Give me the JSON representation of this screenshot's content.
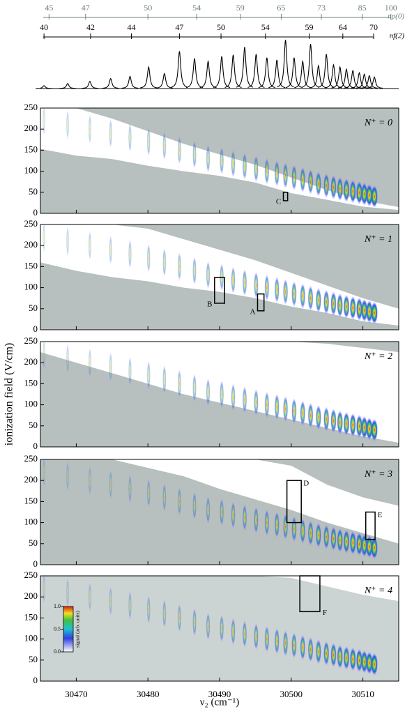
{
  "chart_data": [
    {
      "type": "line",
      "xlim": [
        30465,
        30515
      ],
      "ylim": [
        0,
        70
      ],
      "color": "#000000",
      "x": [
        30465.5,
        30468.8,
        30471.9,
        30474.8,
        30477.5,
        30480.1,
        30482.3,
        30484.4,
        30486.5,
        30488.4,
        30490.3,
        30491.9,
        30493.5,
        30495.1,
        30496.6,
        30498.0,
        30499.2,
        30500.4,
        30501.6,
        30502.7,
        30503.8,
        30504.9,
        30505.9,
        30506.8,
        30507.7,
        30508.6,
        30509.5,
        30510.2,
        30510.9,
        30511.6
      ],
      "values": [
        4,
        7,
        10,
        14,
        17,
        30,
        21,
        52,
        42,
        38,
        45,
        47,
        58,
        48,
        43,
        40,
        68,
        43,
        38,
        62,
        32,
        48,
        33,
        30,
        27,
        25,
        22,
        20,
        18,
        16
      ],
      "scales": [
        {
          "label": "np(0)",
          "color": "#6f8080",
          "ticks": [
            {
              "value": 30466.2,
              "label": "45"
            },
            {
              "value": 30471.3,
              "label": "47"
            },
            {
              "value": 30480.0,
              "label": "50"
            },
            {
              "value": 30486.8,
              "label": "54"
            },
            {
              "value": 30492.9,
              "label": "59"
            },
            {
              "value": 30498.6,
              "label": "65"
            },
            {
              "value": 30504.2,
              "label": "73"
            },
            {
              "value": 30509.9,
              "label": "85"
            },
            {
              "value": 30513.9,
              "label": "100"
            }
          ]
        },
        {
          "label": "nf(2)",
          "color": "#000000",
          "ticks": [
            {
              "value": 30465.5,
              "label": "40"
            },
            {
              "value": 30472.0,
              "label": "42"
            },
            {
              "value": 30477.7,
              "label": "44"
            },
            {
              "value": 30484.4,
              "label": "47"
            },
            {
              "value": 30490.2,
              "label": "50"
            },
            {
              "value": 30496.4,
              "label": "54"
            },
            {
              "value": 30502.5,
              "label": "59"
            },
            {
              "value": 30507.2,
              "label": "64"
            },
            {
              "value": 30511.5,
              "label": "70"
            }
          ]
        }
      ]
    },
    {
      "type": "heatmap",
      "label": "N⁺ = 0",
      "color": "#b7bfbf",
      "xlim": [
        30465,
        30515
      ],
      "ylim": [
        0,
        250
      ],
      "yticks": [
        0,
        50,
        100,
        150,
        200,
        250
      ],
      "boundary_x": [
        30465,
        30470,
        30475,
        30480,
        30485,
        30490,
        30495,
        30500,
        30505,
        30510,
        30515
      ],
      "lower": [
        153,
        137,
        129,
        113,
        100,
        89,
        73,
        48,
        32,
        16,
        8
      ],
      "upper": [
        250,
        250,
        225,
        195,
        165,
        140,
        115,
        85,
        55,
        30,
        15
      ],
      "x": [
        30465.5,
        30468.8,
        30471.9,
        30474.8,
        30477.5,
        30480.1,
        30482.3,
        30484.4,
        30486.5,
        30488.4,
        30490.3,
        30491.9,
        30493.5,
        30495.1,
        30496.6,
        30498.0,
        30499.2,
        30500.4,
        30501.6,
        30502.7,
        30503.8,
        30504.9,
        30505.9,
        30506.8,
        30507.7,
        30508.6,
        30509.5,
        30510.2,
        30510.9,
        30511.6
      ],
      "values": [
        220,
        210,
        200,
        190,
        180,
        170,
        160,
        150,
        140,
        130,
        125,
        118,
        112,
        106,
        100,
        95,
        90,
        85,
        80,
        75,
        70,
        66,
        62,
        58,
        55,
        52,
        49,
        46,
        43,
        40
      ],
      "annotations": [
        {
          "label": "C",
          "x": [
            30498.9,
            30499.5
          ],
          "y": [
            30,
            50
          ]
        }
      ]
    },
    {
      "type": "heatmap",
      "label": "N⁺ = 1",
      "color": "#b7bfbf",
      "xlim": [
        30465,
        30515
      ],
      "ylim": [
        0,
        250
      ],
      "yticks": [
        0,
        50,
        100,
        150,
        200,
        250
      ],
      "boundary_x": [
        30465,
        30470,
        30475,
        30480,
        30485,
        30490,
        30495,
        30500,
        30505,
        30510,
        30515
      ],
      "lower": [
        160,
        140,
        125,
        115,
        100,
        90,
        75,
        55,
        40,
        20,
        10
      ],
      "upper": [
        250,
        250,
        250,
        240,
        215,
        190,
        165,
        135,
        105,
        75,
        50
      ],
      "x": [
        30465.5,
        30468.8,
        30471.9,
        30474.8,
        30477.5,
        30480.1,
        30482.3,
        30484.4,
        30486.5,
        30488.4,
        30490.3,
        30491.9,
        30493.5,
        30495.1,
        30496.6,
        30498.0,
        30499.2,
        30500.4,
        30501.6,
        30502.7,
        30503.8,
        30504.9,
        30505.9,
        30506.8,
        30507.7,
        30508.6,
        30509.5,
        30510.2,
        30510.9,
        30511.6
      ],
      "values": [
        220,
        210,
        200,
        190,
        180,
        170,
        160,
        150,
        140,
        130,
        125,
        118,
        112,
        106,
        100,
        95,
        90,
        85,
        80,
        75,
        70,
        66,
        62,
        58,
        55,
        52,
        49,
        46,
        43,
        40
      ],
      "annotations": [
        {
          "label": "B",
          "x": [
            30489.3,
            30490.7
          ],
          "y": [
            63,
            124
          ]
        },
        {
          "label": "A",
          "x": [
            30495.3,
            30496.2
          ],
          "y": [
            45,
            85
          ]
        }
      ]
    },
    {
      "type": "heatmap",
      "label": "N⁺ = 2",
      "color": "#b7bfbf",
      "xlim": [
        30465,
        30515
      ],
      "ylim": [
        0,
        250
      ],
      "yticks": [
        0,
        50,
        100,
        150,
        200,
        250
      ],
      "ylabel": "ionization field (V/cm)",
      "boundary_x": [
        30465,
        30470,
        30475,
        30480,
        30485,
        30490,
        30495,
        30500,
        30505,
        30510,
        30515
      ],
      "lower": [
        225,
        200,
        175,
        150,
        125,
        105,
        85,
        65,
        45,
        25,
        10
      ],
      "upper": [
        250,
        250,
        250,
        250,
        250,
        250,
        250,
        250,
        245,
        235,
        225
      ],
      "x": [
        30465.5,
        30468.8,
        30471.9,
        30474.8,
        30477.5,
        30480.1,
        30482.3,
        30484.4,
        30486.5,
        30488.4,
        30490.3,
        30491.9,
        30493.5,
        30495.1,
        30496.6,
        30498.0,
        30499.2,
        30500.4,
        30501.6,
        30502.7,
        30503.8,
        30504.9,
        30505.9,
        30506.8,
        30507.7,
        30508.6,
        30509.5,
        30510.2,
        30510.9,
        30511.6
      ],
      "values": [
        220,
        210,
        200,
        190,
        180,
        170,
        160,
        150,
        140,
        130,
        125,
        118,
        112,
        106,
        100,
        95,
        90,
        85,
        80,
        75,
        70,
        66,
        62,
        58,
        55,
        52,
        49,
        46,
        43,
        40
      ],
      "annotations": []
    },
    {
      "type": "heatmap",
      "label": "N⁺ = 3",
      "color": "#b7bfbf",
      "xlim": [
        30465,
        30515
      ],
      "ylim": [
        0,
        250
      ],
      "yticks": [
        0,
        50,
        100,
        150,
        200,
        250
      ],
      "boundary_x": [
        30465,
        30470,
        30475,
        30480,
        30485,
        30490,
        30495,
        30500,
        30505,
        30510,
        30515
      ],
      "lower": [
        250,
        250,
        250,
        230,
        210,
        180,
        155,
        130,
        100,
        75,
        50
      ],
      "upper": [
        250,
        250,
        250,
        250,
        250,
        250,
        250,
        235,
        190,
        160,
        140
      ],
      "x": [
        30465.5,
        30468.8,
        30471.9,
        30474.8,
        30477.5,
        30480.1,
        30482.3,
        30484.4,
        30486.5,
        30488.4,
        30490.3,
        30491.9,
        30493.5,
        30495.1,
        30496.6,
        30498.0,
        30499.2,
        30500.4,
        30501.6,
        30502.7,
        30503.8,
        30504.9,
        30505.9,
        30506.8,
        30507.7,
        30508.6,
        30509.5,
        30510.2,
        30510.9,
        30511.6
      ],
      "values": [
        220,
        210,
        200,
        190,
        180,
        170,
        160,
        150,
        140,
        130,
        125,
        118,
        112,
        106,
        100,
        95,
        90,
        85,
        80,
        75,
        70,
        66,
        62,
        58,
        55,
        52,
        49,
        46,
        43,
        40
      ],
      "annotations": [
        {
          "label": "D",
          "x": [
            30499.4,
            30501.4
          ],
          "y": [
            100,
            200
          ]
        },
        {
          "label": "E",
          "x": [
            30510.4,
            30511.7
          ],
          "y": [
            60,
            125
          ]
        }
      ]
    },
    {
      "type": "heatmap",
      "label": "N⁺ = 4",
      "color": "#ccd3d3",
      "xlim": [
        30465,
        30515
      ],
      "ylim": [
        0,
        250
      ],
      "yticks": [
        0,
        50,
        100,
        150,
        200,
        250
      ],
      "xticks": [
        30470,
        30480,
        30490,
        30500,
        30510
      ],
      "xlabel": "ν₂ (cm⁻¹)",
      "boundary_x": [
        30465,
        30470,
        30475,
        30480,
        30485,
        30490,
        30495,
        30500,
        30505,
        30510,
        30515
      ],
      "lower": [
        250,
        250,
        250,
        250,
        250,
        250,
        250,
        245,
        225,
        205,
        190
      ],
      "upper": [
        250,
        250,
        250,
        250,
        250,
        250,
        250,
        250,
        250,
        250,
        250
      ],
      "x": [
        30465.5,
        30468.8,
        30471.9,
        30474.8,
        30477.5,
        30480.1,
        30482.3,
        30484.4,
        30486.5,
        30488.4,
        30490.3,
        30491.9,
        30493.5,
        30495.1,
        30496.6,
        30498.0,
        30499.2,
        30500.4,
        30501.6,
        30502.7,
        30503.8,
        30504.9,
        30505.9,
        30506.8,
        30507.7,
        30508.6,
        30509.5,
        30510.2,
        30510.9,
        30511.6
      ],
      "values": [
        220,
        210,
        200,
        190,
        180,
        170,
        160,
        150,
        140,
        130,
        125,
        118,
        112,
        106,
        100,
        95,
        90,
        85,
        80,
        75,
        70,
        66,
        62,
        58,
        55,
        52,
        49,
        46,
        43,
        40
      ],
      "annotations": [
        {
          "label": "F",
          "x": [
            30501.2,
            30504.0
          ],
          "y": [
            165,
            250
          ]
        }
      ],
      "colorbar": {
        "label": "signal (arb. units)",
        "lim": [
          0,
          1
        ],
        "ticks": [
          {
            "value": 0,
            "label": "0.0"
          },
          {
            "value": 0.5,
            "label": "0.5"
          },
          {
            "value": 1,
            "label": "1.0"
          }
        ]
      }
    }
  ]
}
